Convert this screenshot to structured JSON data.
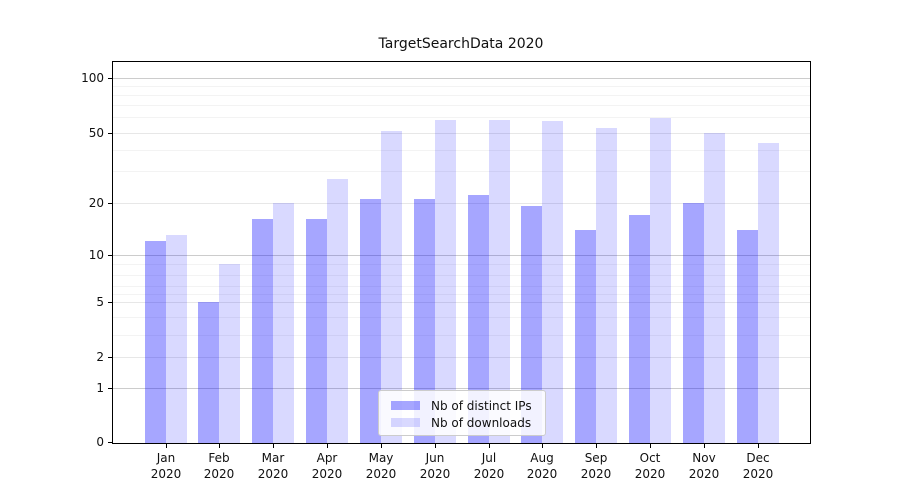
{
  "title": "TargetSearchData 2020",
  "chart_data": {
    "type": "bar",
    "title": "TargetSearchData 2020",
    "categories": [
      "Jan",
      "Feb",
      "Mar",
      "Apr",
      "May",
      "Jun",
      "Jul",
      "Aug",
      "Sep",
      "Oct",
      "Nov",
      "Dec"
    ],
    "category_year": "2020",
    "series": [
      {
        "name": "Nb of distinct IPs",
        "fill": "#0000FF",
        "alpha": 0.35,
        "solid_equivalent": "#A6A6FF",
        "values": [
          12,
          5,
          16,
          16,
          21,
          21,
          22,
          19,
          14,
          17,
          20,
          14
        ]
      },
      {
        "name": "Nb of downloads",
        "fill": "#0000FF",
        "alpha": 0.15,
        "solid_equivalent": "#D9D9FF",
        "values": [
          13,
          9,
          20,
          27,
          51,
          58,
          58,
          57,
          53,
          59,
          50,
          44
        ]
      }
    ],
    "xlabel": "",
    "ylabel": "",
    "yticks": [
      0,
      1,
      2,
      5,
      10,
      20,
      50,
      100
    ],
    "yscale": "symlog-like",
    "ylim": [
      0,
      125
    ],
    "grid": true,
    "legend": {
      "position": "lower-center-inside",
      "labels": [
        "Nb of distinct IPs",
        "Nb of downloads"
      ]
    }
  }
}
